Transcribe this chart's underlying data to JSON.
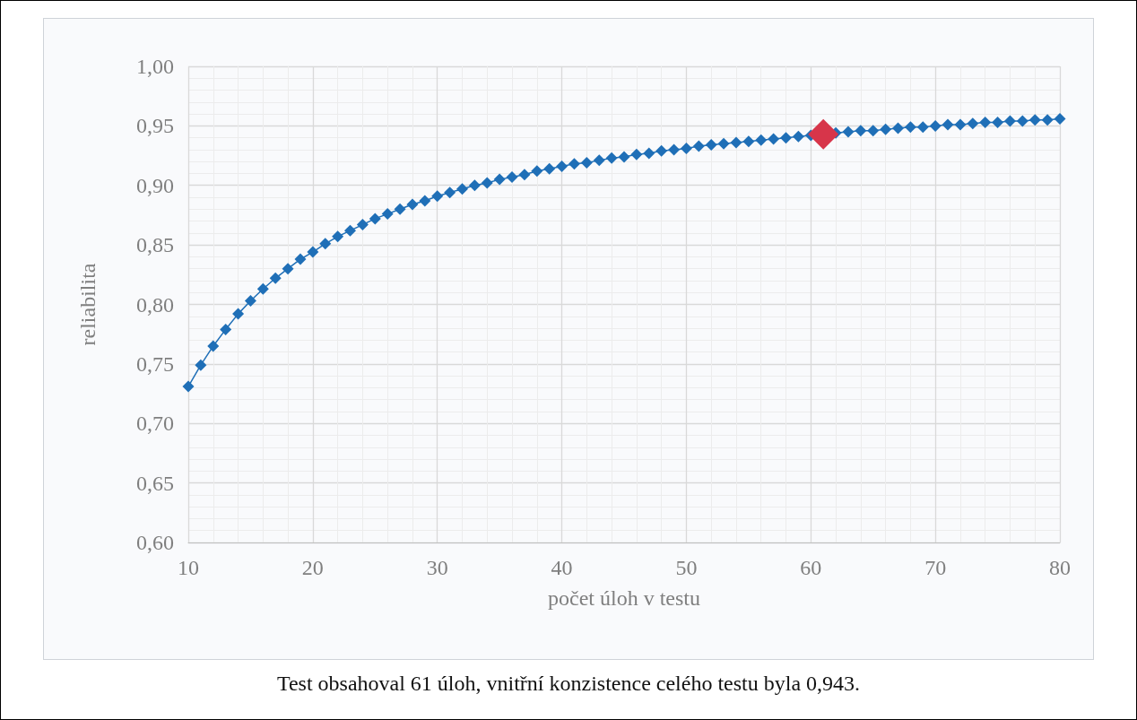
{
  "chart_data": {
    "type": "line",
    "xlabel": "počet úloh v testu",
    "ylabel": "reliabilita",
    "annotations": [
      "Test obsahoval 61 úloh, vnitřní konzistence celého testu byla 0,943."
    ],
    "xlim": [
      10,
      80
    ],
    "xticks": [
      10,
      20,
      30,
      40,
      50,
      60,
      70,
      80
    ],
    "ylim": [
      0.6,
      1.0
    ],
    "yticks": [
      {
        "value": 0.6,
        "label": "0,60"
      },
      {
        "value": 0.65,
        "label": "0,65"
      },
      {
        "value": 0.7,
        "label": "0,70"
      },
      {
        "value": 0.75,
        "label": "0,75"
      },
      {
        "value": 0.8,
        "label": "0,80"
      },
      {
        "value": 0.85,
        "label": "0,85"
      },
      {
        "value": 0.9,
        "label": "0,90"
      },
      {
        "value": 0.95,
        "label": "0,95"
      },
      {
        "value": 1.0,
        "label": "1,00"
      }
    ],
    "grid": true,
    "marker": "diamond",
    "line_style": "solid",
    "series": [
      {
        "color": "#1f6fb7",
        "x": [
          10,
          11,
          12,
          13,
          14,
          15,
          16,
          17,
          18,
          19,
          20,
          21,
          22,
          23,
          24,
          25,
          26,
          27,
          28,
          29,
          30,
          31,
          32,
          33,
          34,
          35,
          36,
          37,
          38,
          39,
          40,
          41,
          42,
          43,
          44,
          45,
          46,
          47,
          48,
          49,
          50,
          51,
          52,
          53,
          54,
          55,
          56,
          57,
          58,
          59,
          60,
          61,
          62,
          63,
          64,
          65,
          66,
          67,
          68,
          69,
          70,
          71,
          72,
          73,
          74,
          75,
          76,
          77,
          78,
          79,
          80
        ],
        "values": [
          0.731,
          0.749,
          0.765,
          0.779,
          0.792,
          0.803,
          0.813,
          0.822,
          0.83,
          0.838,
          0.844,
          0.851,
          0.857,
          0.862,
          0.867,
          0.872,
          0.876,
          0.88,
          0.884,
          0.887,
          0.891,
          0.894,
          0.897,
          0.9,
          0.902,
          0.905,
          0.907,
          0.909,
          0.912,
          0.914,
          0.916,
          0.918,
          0.919,
          0.921,
          0.923,
          0.924,
          0.926,
          0.927,
          0.929,
          0.93,
          0.931,
          0.933,
          0.934,
          0.935,
          0.936,
          0.937,
          0.938,
          0.939,
          0.94,
          0.941,
          0.942,
          null,
          0.944,
          0.945,
          0.946,
          0.946,
          0.947,
          0.948,
          0.949,
          0.949,
          0.95,
          0.951,
          0.951,
          0.952,
          0.953,
          0.953,
          0.954,
          0.954,
          0.955,
          0.955,
          0.956
        ]
      },
      {
        "type": "scatter",
        "color": "#d7354a",
        "x": [
          61
        ],
        "values": [
          0.943
        ]
      }
    ]
  }
}
